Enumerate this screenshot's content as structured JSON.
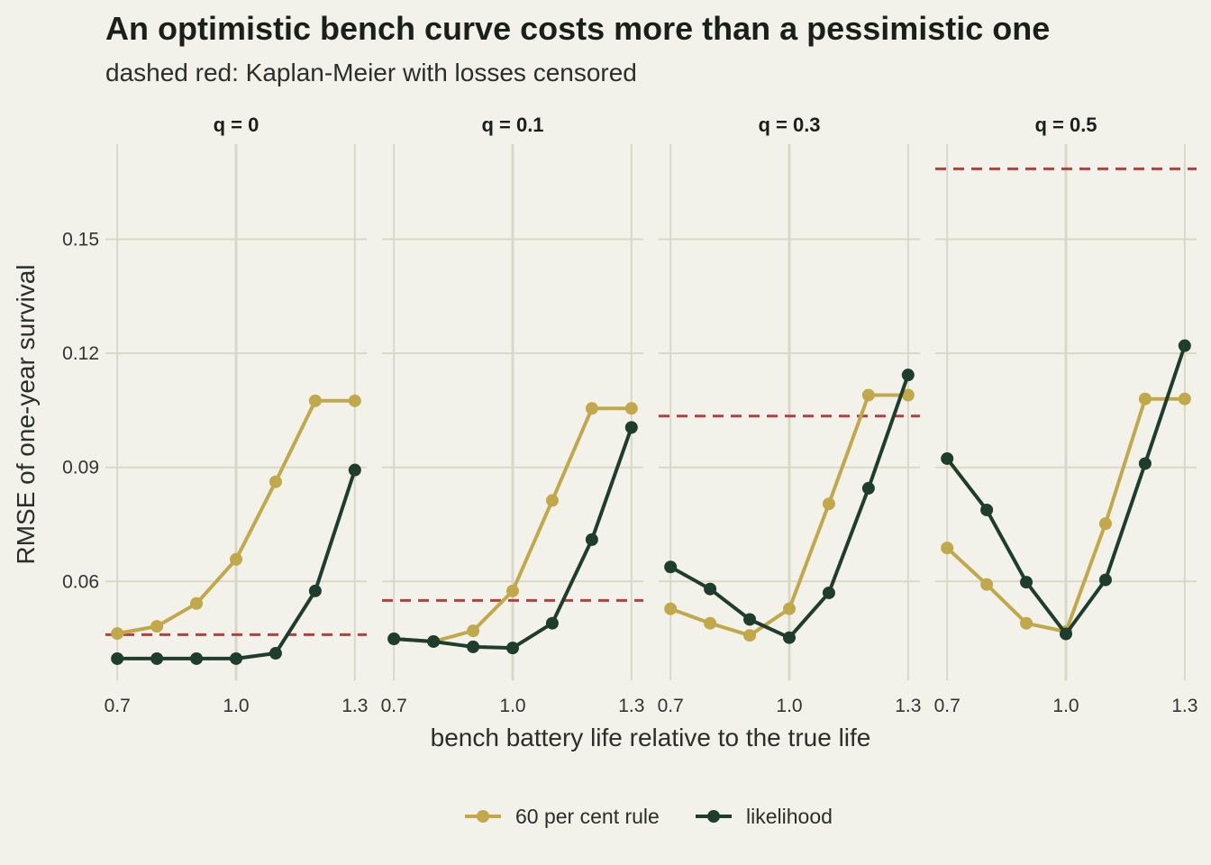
{
  "title": "An optimistic bench curve costs more than a pessimistic one",
  "subtitle": "dashed red: Kaplan-Meier with losses censored",
  "xlabel": "bench battery life relative to the true life",
  "ylabel": "RMSE of one-year survival",
  "legend": {
    "position": "bottom",
    "items": [
      {
        "label": "60 per cent rule",
        "color": "#c1a94b"
      },
      {
        "label": "likelihood",
        "color": "#1f3d2c"
      }
    ]
  },
  "chart_data": {
    "type": "line",
    "x": [
      0.7,
      0.8,
      0.9,
      1.0,
      1.1,
      1.2,
      1.3
    ],
    "xticks": [
      "0.7",
      "1.0",
      "1.3"
    ],
    "xlim": [
      0.67,
      1.33
    ],
    "yticks": [
      "0.06",
      "0.09",
      "0.12",
      "0.15"
    ],
    "ylim": [
      0.034,
      0.175
    ],
    "grid": true,
    "reference_color": "#b24040",
    "facets": [
      {
        "label": "q = 0",
        "series": [
          {
            "name": "60 per cent rule",
            "values": [
              0.0463,
              0.0482,
              0.0542,
              0.0658,
              0.0862,
              0.1075,
              0.1075
            ]
          },
          {
            "name": "likelihood",
            "values": [
              0.0397,
              0.0397,
              0.0397,
              0.0397,
              0.0411,
              0.0575,
              0.0893
            ]
          }
        ],
        "kaplan_meier": 0.046
      },
      {
        "label": "q = 0.1",
        "series": [
          {
            "name": "60 per cent rule",
            "values": [
              0.0449,
              0.0442,
              0.047,
              0.0575,
              0.0813,
              0.1055,
              0.1055
            ]
          },
          {
            "name": "likelihood",
            "values": [
              0.0449,
              0.0442,
              0.0428,
              0.0425,
              0.049,
              0.071,
              0.1005
            ]
          }
        ],
        "kaplan_meier": 0.055
      },
      {
        "label": "q = 0.3",
        "series": [
          {
            "name": "60 per cent rule",
            "values": [
              0.0528,
              0.049,
              0.0458,
              0.0528,
              0.0804,
              0.109,
              0.109
            ]
          },
          {
            "name": "likelihood",
            "values": [
              0.0638,
              0.058,
              0.05,
              0.0452,
              0.057,
              0.0845,
              0.1143
            ]
          }
        ],
        "kaplan_meier": 0.1035
      },
      {
        "label": "q = 0.5",
        "series": [
          {
            "name": "60 per cent rule",
            "values": [
              0.0688,
              0.0592,
              0.049,
              0.0468,
              0.0752,
              0.108,
              0.108
            ]
          },
          {
            "name": "likelihood",
            "values": [
              0.0923,
              0.0788,
              0.0598,
              0.0462,
              0.0604,
              0.091,
              0.122
            ]
          }
        ],
        "kaplan_meier": 0.1685
      }
    ]
  }
}
